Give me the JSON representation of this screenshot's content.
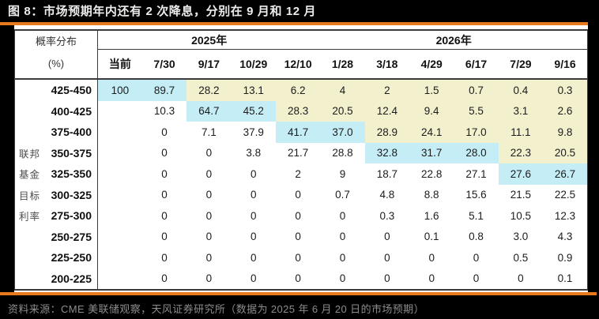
{
  "figure": {
    "title": "图 8：市场预期年内还有 2 次降息，分别在 9 月和 12 月",
    "source_note": "资料来源：CME 美联储观察，天风证券研究所（数据为 2025 年 6 月 20 日的市场预期）"
  },
  "colors": {
    "page_background": "#000000",
    "accent_orange": "#E8791D",
    "table_background": "#FFFFFF",
    "highlight_cyan": "#C4EDF6",
    "highlight_yellow": "#F3F0CE",
    "border_dark": "#3B3B3B"
  },
  "chart_data": {
    "type": "table",
    "title": "图 8：市场预期年内还有 2 次降息，分别在 9 月和 12 月",
    "corner_header": [
      "概率分布",
      "(%)"
    ],
    "row_axis_label": "联邦基金目标利率",
    "year_groups": [
      {
        "label": "2025年",
        "span": 5
      },
      {
        "label": "2026年",
        "span": 6
      }
    ],
    "columns": [
      "当前",
      "7/30",
      "9/17",
      "10/29",
      "12/10",
      "1/28",
      "3/18",
      "4/29",
      "6/17",
      "7/29",
      "9/16"
    ],
    "highlight_legend": {
      "c": "cyan",
      "y": "yellow",
      "w": "white"
    },
    "rows": [
      {
        "label": "425-450",
        "side": "",
        "values": [
          "100",
          "89.7",
          "28.2",
          "13.1",
          "6.2",
          "4",
          "2",
          "1.5",
          "0.7",
          "0.4",
          "0.3"
        ],
        "hl": [
          "c",
          "c",
          "y",
          "y",
          "y",
          "y",
          "y",
          "y",
          "y",
          "y",
          "y"
        ]
      },
      {
        "label": "400-425",
        "side": "",
        "values": [
          "",
          "10.3",
          "64.7",
          "45.2",
          "28.3",
          "20.5",
          "12.4",
          "9.4",
          "5.5",
          "3.1",
          "2.6"
        ],
        "hl": [
          "w",
          "w",
          "c",
          "c",
          "y",
          "y",
          "y",
          "y",
          "y",
          "y",
          "y"
        ]
      },
      {
        "label": "375-400",
        "side": "",
        "values": [
          "",
          "0",
          "7.1",
          "37.9",
          "41.7",
          "37.0",
          "28.9",
          "24.1",
          "17.0",
          "11.1",
          "9.8"
        ],
        "hl": [
          "w",
          "w",
          "w",
          "w",
          "c",
          "c",
          "y",
          "y",
          "y",
          "y",
          "y"
        ]
      },
      {
        "label": "350-375",
        "side": "联邦",
        "values": [
          "",
          "0",
          "0",
          "3.8",
          "21.7",
          "28.8",
          "32.8",
          "31.7",
          "28.0",
          "22.3",
          "20.5"
        ],
        "hl": [
          "w",
          "w",
          "w",
          "w",
          "w",
          "w",
          "c",
          "c",
          "c",
          "y",
          "y"
        ]
      },
      {
        "label": "325-350",
        "side": "基金",
        "values": [
          "",
          "0",
          "0",
          "0",
          "2",
          "9",
          "18.7",
          "22.8",
          "27.1",
          "27.6",
          "26.7"
        ],
        "hl": [
          "w",
          "w",
          "w",
          "w",
          "w",
          "w",
          "w",
          "w",
          "w",
          "c",
          "c"
        ]
      },
      {
        "label": "300-325",
        "side": "目标",
        "values": [
          "",
          "0",
          "0",
          "0",
          "0",
          "0.7",
          "4.8",
          "8.8",
          "15.6",
          "21.5",
          "22.5"
        ],
        "hl": [
          "w",
          "w",
          "w",
          "w",
          "w",
          "w",
          "w",
          "w",
          "w",
          "w",
          "w"
        ]
      },
      {
        "label": "275-300",
        "side": "利率",
        "values": [
          "",
          "0",
          "0",
          "0",
          "0",
          "0",
          "0.3",
          "1.6",
          "5.1",
          "10.5",
          "12.3"
        ],
        "hl": [
          "w",
          "w",
          "w",
          "w",
          "w",
          "w",
          "w",
          "w",
          "w",
          "w",
          "w"
        ]
      },
      {
        "label": "250-275",
        "side": "",
        "values": [
          "",
          "0",
          "0",
          "0",
          "0",
          "0",
          "0",
          "0.1",
          "0.8",
          "3.0",
          "4.3"
        ],
        "hl": [
          "w",
          "w",
          "w",
          "w",
          "w",
          "w",
          "w",
          "w",
          "w",
          "w",
          "w"
        ]
      },
      {
        "label": "225-250",
        "side": "",
        "values": [
          "",
          "0",
          "0",
          "0",
          "0",
          "0",
          "0",
          "0",
          "0",
          "0.5",
          "0.9"
        ],
        "hl": [
          "w",
          "w",
          "w",
          "w",
          "w",
          "w",
          "w",
          "w",
          "w",
          "w",
          "w"
        ]
      },
      {
        "label": "200-225",
        "side": "",
        "values": [
          "",
          "0",
          "0",
          "0",
          "0",
          "0",
          "0",
          "0",
          "0",
          "0",
          "0.1"
        ],
        "hl": [
          "w",
          "w",
          "w",
          "w",
          "w",
          "w",
          "w",
          "w",
          "w",
          "w",
          "w"
        ]
      }
    ]
  }
}
